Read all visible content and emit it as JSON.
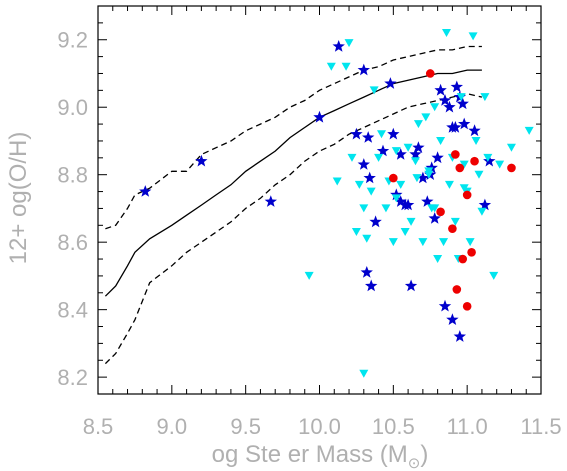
{
  "chart_data": {
    "type": "scatter",
    "title": "",
    "xlabel": "og Ste er Mass (M",
    "xlabel_sub": "⊙",
    "xlabel_close": ")",
    "ylabel": "12+ og(O/H)",
    "xlim": [
      8.5,
      11.5
    ],
    "ylim": [
      8.15,
      9.3
    ],
    "x_ticks": [
      8.5,
      9.0,
      9.5,
      10.0,
      10.5,
      11.0,
      11.5
    ],
    "x_tick_labels": [
      "8.5",
      "9.0",
      "9.5",
      "10.0",
      "10.5",
      "11.0",
      "11.5"
    ],
    "y_ticks": [
      8.2,
      8.4,
      8.6,
      8.8,
      9.0,
      9.2
    ],
    "y_tick_labels": [
      "8.2",
      "8.4",
      "8.6",
      "8.8",
      "9.0",
      "9.2"
    ],
    "grid": false,
    "colors": {
      "stars": "#0000cc",
      "triangles": "#00e5ee",
      "circles": "#ee0000",
      "lines": "#000000",
      "axes": "#000000",
      "text": "#b0b0b0"
    },
    "lines": [
      {
        "style": "solid",
        "x": [
          8.55,
          8.62,
          8.7,
          8.75,
          8.85,
          9.0,
          9.1,
          9.2,
          9.3,
          9.4,
          9.5,
          9.6,
          9.7,
          9.8,
          9.9,
          10.0,
          10.1,
          10.2,
          10.3,
          10.4,
          10.5,
          10.6,
          10.7,
          10.8,
          10.9,
          11.0,
          11.1
        ],
        "y": [
          8.44,
          8.47,
          8.53,
          8.57,
          8.61,
          8.65,
          8.68,
          8.71,
          8.74,
          8.77,
          8.81,
          8.84,
          8.87,
          8.91,
          8.94,
          8.97,
          8.99,
          9.01,
          9.03,
          9.05,
          9.07,
          9.08,
          9.09,
          9.1,
          9.1,
          9.11,
          9.11
        ]
      },
      {
        "style": "dashed",
        "x": [
          8.55,
          8.62,
          8.7,
          8.75,
          8.85,
          9.0,
          9.1,
          9.2,
          9.3,
          9.4,
          9.5,
          9.6,
          9.7,
          9.8,
          9.9,
          10.0,
          10.1,
          10.2,
          10.3,
          10.4,
          10.5,
          10.6,
          10.7,
          10.8,
          10.9,
          11.0,
          11.1
        ],
        "y": [
          8.64,
          8.65,
          8.7,
          8.74,
          8.76,
          8.81,
          8.81,
          8.86,
          8.88,
          8.9,
          8.93,
          8.95,
          8.97,
          9.0,
          9.02,
          9.05,
          9.07,
          9.09,
          9.11,
          9.12,
          9.14,
          9.15,
          9.16,
          9.17,
          9.17,
          9.18,
          9.18
        ]
      },
      {
        "style": "dashed",
        "x": [
          8.55,
          8.62,
          8.7,
          8.75,
          8.85,
          9.0,
          9.1,
          9.2,
          9.3,
          9.4,
          9.5,
          9.6,
          9.7,
          9.8,
          9.9,
          10.0,
          10.1,
          10.2,
          10.3,
          10.4,
          10.5,
          10.6,
          10.7,
          10.8,
          10.9,
          11.0,
          11.1
        ],
        "y": [
          8.24,
          8.27,
          8.33,
          8.37,
          8.48,
          8.53,
          8.57,
          8.6,
          8.63,
          8.66,
          8.7,
          8.73,
          8.77,
          8.8,
          8.84,
          8.87,
          8.89,
          8.92,
          8.94,
          8.96,
          8.98,
          9.0,
          9.01,
          9.02,
          9.03,
          9.04,
          9.03
        ]
      }
    ],
    "series": [
      {
        "marker": "star",
        "points": [
          [
            8.82,
            8.75
          ],
          [
            9.2,
            8.84
          ],
          [
            9.67,
            8.72
          ],
          [
            10.0,
            8.97
          ],
          [
            10.13,
            9.18
          ],
          [
            10.25,
            8.92
          ],
          [
            10.3,
            8.83
          ],
          [
            10.3,
            9.11
          ],
          [
            10.33,
            8.91
          ],
          [
            10.34,
            8.79
          ],
          [
            10.38,
            8.66
          ],
          [
            10.35,
            8.47
          ],
          [
            10.32,
            8.51
          ],
          [
            10.43,
            8.87
          ],
          [
            10.48,
            9.07
          ],
          [
            10.5,
            8.92
          ],
          [
            10.52,
            8.74
          ],
          [
            10.55,
            8.72
          ],
          [
            10.58,
            8.71
          ],
          [
            10.6,
            8.71
          ],
          [
            10.55,
            8.86
          ],
          [
            10.65,
            8.86
          ],
          [
            10.67,
            8.88
          ],
          [
            10.7,
            8.79
          ],
          [
            10.73,
            8.72
          ],
          [
            10.75,
            8.8
          ],
          [
            10.76,
            8.82
          ],
          [
            10.78,
            8.67
          ],
          [
            10.8,
            8.85
          ],
          [
            10.82,
            9.05
          ],
          [
            10.85,
            9.02
          ],
          [
            10.88,
            9.0
          ],
          [
            10.9,
            8.94
          ],
          [
            10.92,
            8.94
          ],
          [
            10.93,
            9.06
          ],
          [
            10.95,
            9.03
          ],
          [
            10.97,
            9.01
          ],
          [
            10.85,
            8.41
          ],
          [
            10.9,
            8.37
          ],
          [
            10.95,
            8.32
          ],
          [
            10.62,
            8.47
          ],
          [
            11.05,
            8.93
          ],
          [
            11.15,
            8.84
          ],
          [
            11.12,
            8.71
          ],
          [
            10.98,
            8.95
          ]
        ]
      },
      {
        "marker": "triangle",
        "points": [
          [
            9.93,
            8.5
          ],
          [
            10.08,
            9.12
          ],
          [
            10.12,
            8.78
          ],
          [
            10.18,
            9.12
          ],
          [
            10.2,
            9.19
          ],
          [
            10.22,
            8.85
          ],
          [
            10.25,
            8.63
          ],
          [
            10.27,
            8.77
          ],
          [
            10.3,
            8.7
          ],
          [
            10.32,
            8.61
          ],
          [
            10.35,
            8.75
          ],
          [
            10.37,
            9.05
          ],
          [
            10.4,
            8.85
          ],
          [
            10.42,
            8.92
          ],
          [
            10.45,
            8.7
          ],
          [
            10.47,
            8.78
          ],
          [
            10.5,
            8.6
          ],
          [
            10.52,
            8.87
          ],
          [
            10.55,
            8.77
          ],
          [
            10.58,
            8.63
          ],
          [
            10.6,
            8.88
          ],
          [
            10.62,
            8.66
          ],
          [
            10.65,
            8.84
          ],
          [
            10.67,
            8.95
          ],
          [
            10.7,
            8.6
          ],
          [
            10.72,
            8.97
          ],
          [
            10.74,
            8.8
          ],
          [
            10.76,
            8.7
          ],
          [
            10.78,
            9.0
          ],
          [
            10.8,
            8.55
          ],
          [
            10.82,
            8.9
          ],
          [
            10.84,
            8.6
          ],
          [
            10.86,
            9.22
          ],
          [
            10.88,
            8.77
          ],
          [
            10.9,
            8.85
          ],
          [
            10.92,
            8.66
          ],
          [
            10.94,
            8.55
          ],
          [
            10.96,
            9.03
          ],
          [
            10.98,
            8.83
          ],
          [
            11.0,
            8.75
          ],
          [
            11.02,
            8.6
          ],
          [
            11.04,
            9.21
          ],
          [
            11.06,
            8.9
          ],
          [
            11.08,
            8.8
          ],
          [
            11.1,
            8.69
          ],
          [
            11.12,
            9.03
          ],
          [
            11.14,
            8.85
          ],
          [
            11.18,
            8.5
          ],
          [
            11.22,
            8.83
          ],
          [
            11.3,
            8.88
          ],
          [
            11.42,
            8.93
          ],
          [
            10.3,
            8.21
          ],
          [
            10.52,
            8.73
          ],
          [
            10.66,
            8.79
          ],
          [
            10.74,
            8.81
          ],
          [
            10.78,
            8.7
          ],
          [
            10.98,
            8.76
          ]
        ]
      },
      {
        "marker": "circle",
        "points": [
          [
            10.75,
            9.1
          ],
          [
            10.92,
            8.86
          ],
          [
            10.95,
            8.82
          ],
          [
            11.0,
            8.74
          ],
          [
            10.5,
            8.79
          ],
          [
            10.82,
            8.69
          ],
          [
            10.9,
            8.64
          ],
          [
            10.97,
            8.55
          ],
          [
            10.93,
            8.46
          ],
          [
            11.0,
            8.41
          ],
          [
            11.03,
            8.57
          ],
          [
            11.3,
            8.82
          ],
          [
            11.05,
            8.84
          ]
        ]
      }
    ]
  }
}
